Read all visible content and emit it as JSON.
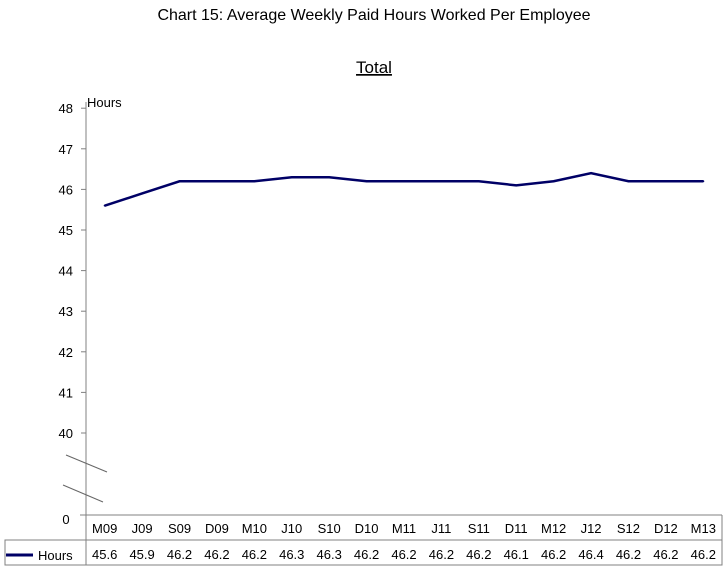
{
  "chart_data": {
    "type": "line",
    "title": "Chart 15: Average Weekly Paid Hours Worked Per Employee",
    "subtitle": "Total",
    "ylabel": "Hours",
    "xlabel": "",
    "ylim": [
      40,
      48
    ],
    "yticks": [
      48,
      47,
      46,
      45,
      44,
      43,
      42,
      41,
      40
    ],
    "y_zero_label": "0",
    "axis_break": true,
    "grid": false,
    "categories": [
      "M09",
      "J09",
      "S09",
      "D09",
      "M10",
      "J10",
      "S10",
      "D10",
      "M11",
      "J11",
      "S11",
      "D11",
      "M12",
      "J12",
      "S12",
      "D12",
      "M13"
    ],
    "series": [
      {
        "name": "Hours",
        "color": "#000066",
        "values": [
          45.6,
          45.9,
          46.2,
          46.2,
          46.2,
          46.3,
          46.3,
          46.2,
          46.2,
          46.2,
          46.2,
          46.1,
          46.2,
          46.4,
          46.2,
          46.2,
          46.2
        ]
      }
    ],
    "legend": "data-table-left"
  }
}
